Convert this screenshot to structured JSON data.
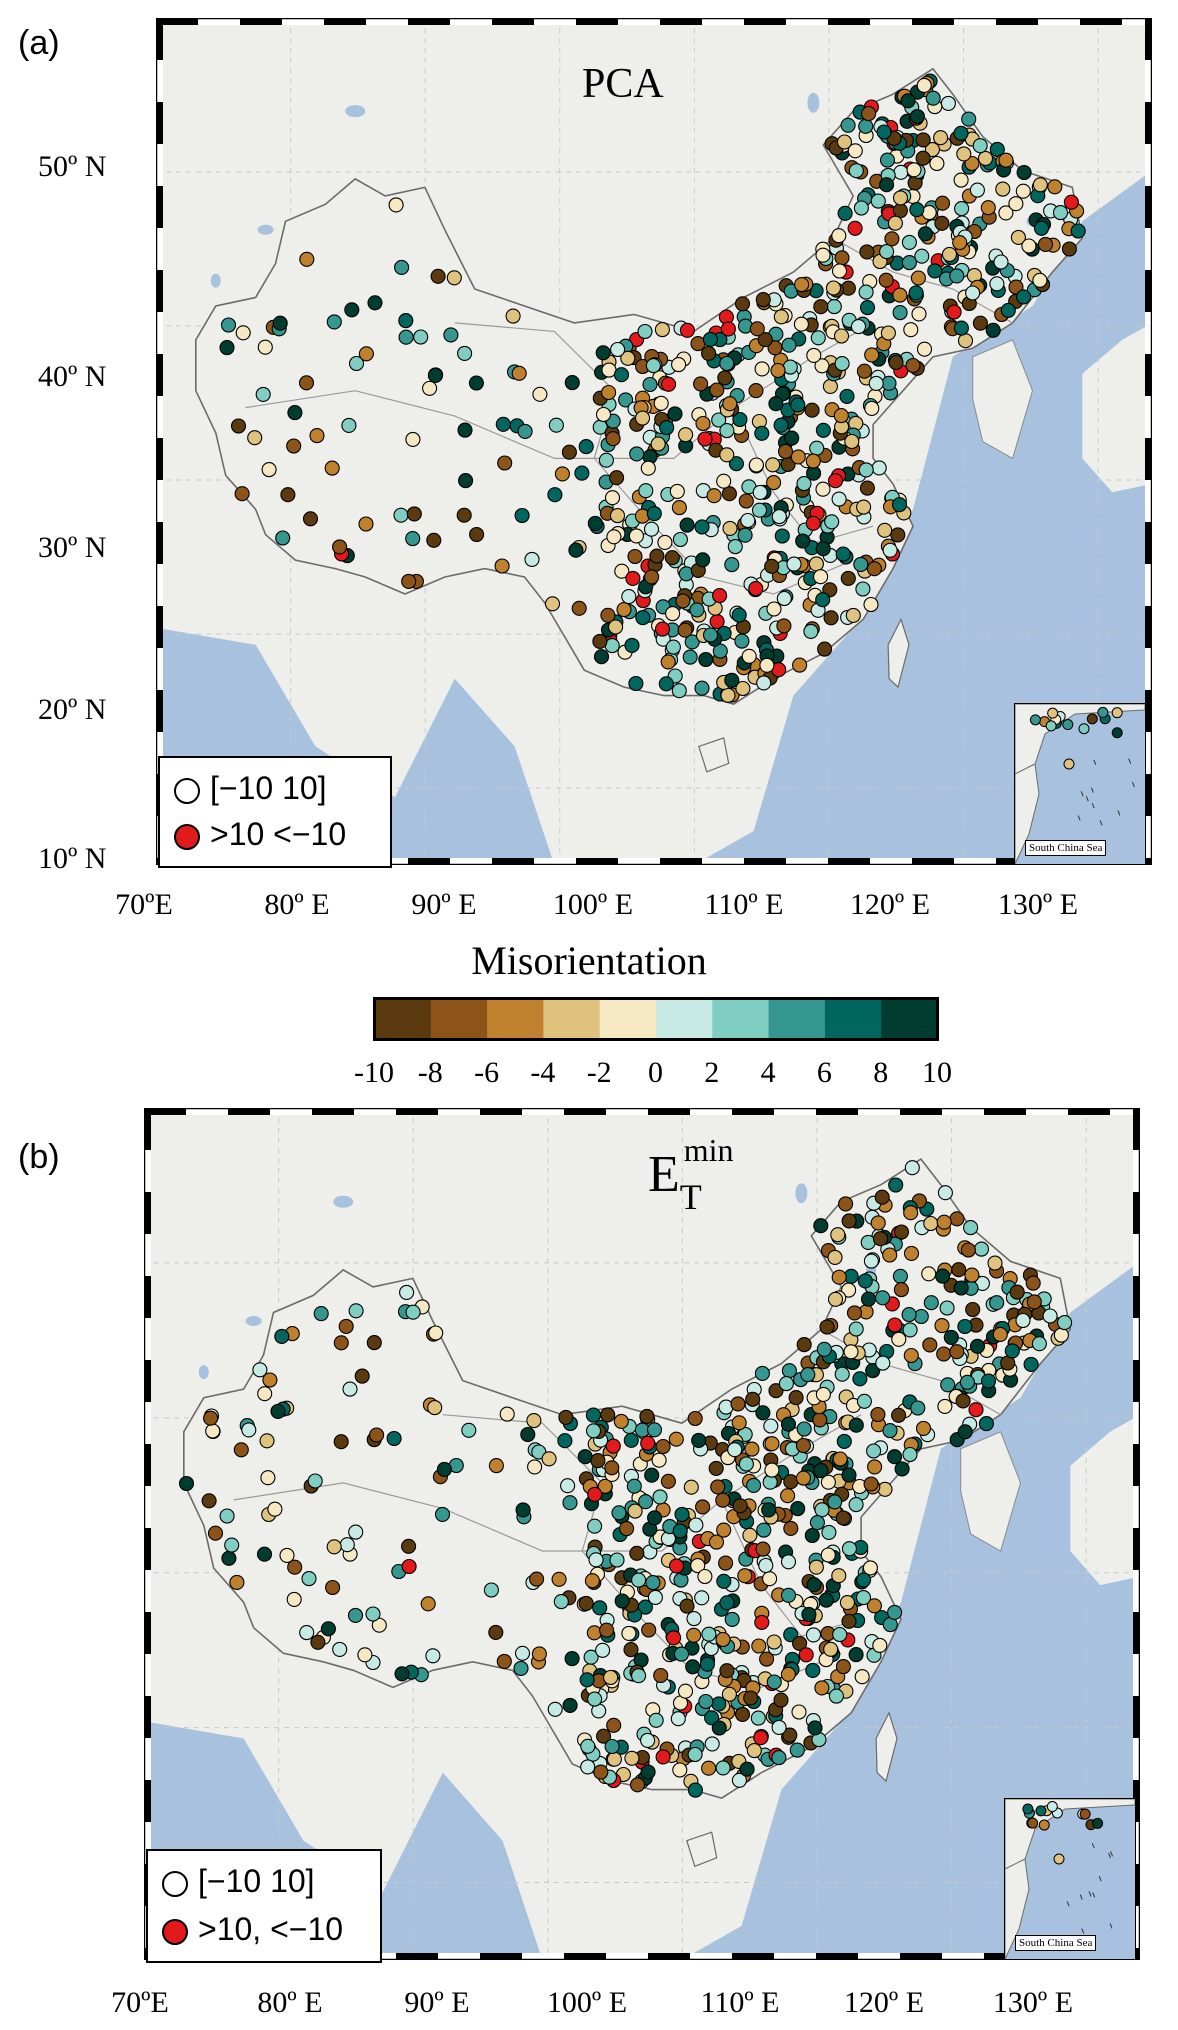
{
  "panels": [
    {
      "letter": "(a)",
      "title": "PCA",
      "legend": {
        "in_range": "[−10 10]",
        "out_range": ">10   <−10"
      },
      "inset_label": "South China Sea",
      "ylabels": [
        "50º N",
        "40º N",
        "30º N",
        "20º N",
        "10º N"
      ],
      "xlabels": [
        "70ºE",
        "80º E",
        "90º E",
        "100º E",
        "110º E",
        "120º E",
        "130º E"
      ]
    },
    {
      "letter": "(b)",
      "title_main": "E",
      "title_sub": "T",
      "title_sup": "min",
      "legend": {
        "in_range": "[−10 10]",
        "out_range": ">10, <−10"
      },
      "inset_label": "South China Sea",
      "xlabels": [
        "70ºE",
        "80º E",
        "90º E",
        "100º E",
        "110º E",
        "120º E",
        "130º E"
      ]
    }
  ],
  "colorbar": {
    "title": "Misorientation",
    "ticks": [
      "-10",
      "-8",
      "-6",
      "-4",
      "-2",
      "0",
      "2",
      "4",
      "6",
      "8",
      "10"
    ],
    "colors": [
      "#5a3a0e",
      "#8c5419",
      "#bf812d",
      "#dfc27d",
      "#f6e8c3",
      "#c7eae5",
      "#80cdc1",
      "#35978f",
      "#01665e",
      "#003c30"
    ],
    "outlier_color": "#e31a1c"
  },
  "colors": {
    "ocean": "#a7c1de",
    "land": "#eeeeeb",
    "border": "#8a8a8a"
  }
}
